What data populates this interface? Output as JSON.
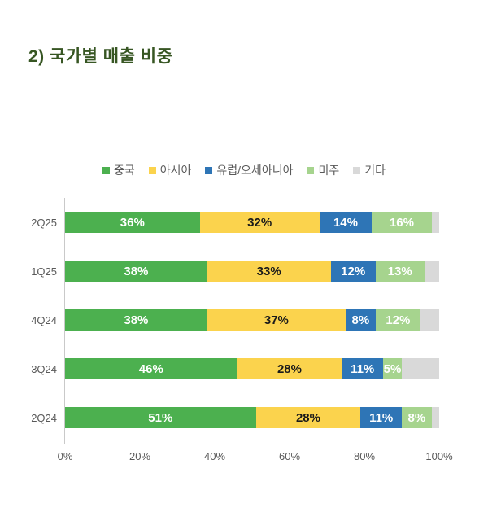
{
  "title": "2) 국가별 매출 비중",
  "title_color": "#375623",
  "legend_text_color": "#595959",
  "chart_data": {
    "type": "bar",
    "orientation": "horizontal-stacked",
    "title": "2) 국가별 매출 비중",
    "legend_position": "top",
    "grid": false,
    "xlim": [
      0,
      100
    ],
    "x_ticks": [
      "0%",
      "20%",
      "40%",
      "60%",
      "80%",
      "100%"
    ],
    "x_tick_values": [
      0,
      20,
      40,
      60,
      80,
      100
    ],
    "categories": [
      "2Q25",
      "1Q25",
      "4Q24",
      "3Q24",
      "2Q24"
    ],
    "series": [
      {
        "name": "중국",
        "color": "#4CB04F",
        "label_color": "#ffffff",
        "show_labels": true,
        "values": [
          36,
          38,
          38,
          46,
          51
        ]
      },
      {
        "name": "아시아",
        "color": "#FBD34D",
        "label_color": "#1a1a1a",
        "show_labels": true,
        "values": [
          32,
          33,
          37,
          28,
          28
        ]
      },
      {
        "name": "유럽/오세아니아",
        "color": "#2E75B6",
        "label_color": "#ffffff",
        "show_labels": true,
        "values": [
          14,
          12,
          8,
          11,
          11
        ]
      },
      {
        "name": "미주",
        "color": "#A6D48E",
        "label_color": "#ffffff",
        "show_labels": true,
        "values": [
          16,
          13,
          12,
          5,
          8
        ]
      },
      {
        "name": "기타",
        "color": "#D9D9D9",
        "label_color": null,
        "show_labels": false,
        "values": [
          2,
          4,
          5,
          10,
          2
        ]
      }
    ],
    "label_suffix": "%"
  }
}
